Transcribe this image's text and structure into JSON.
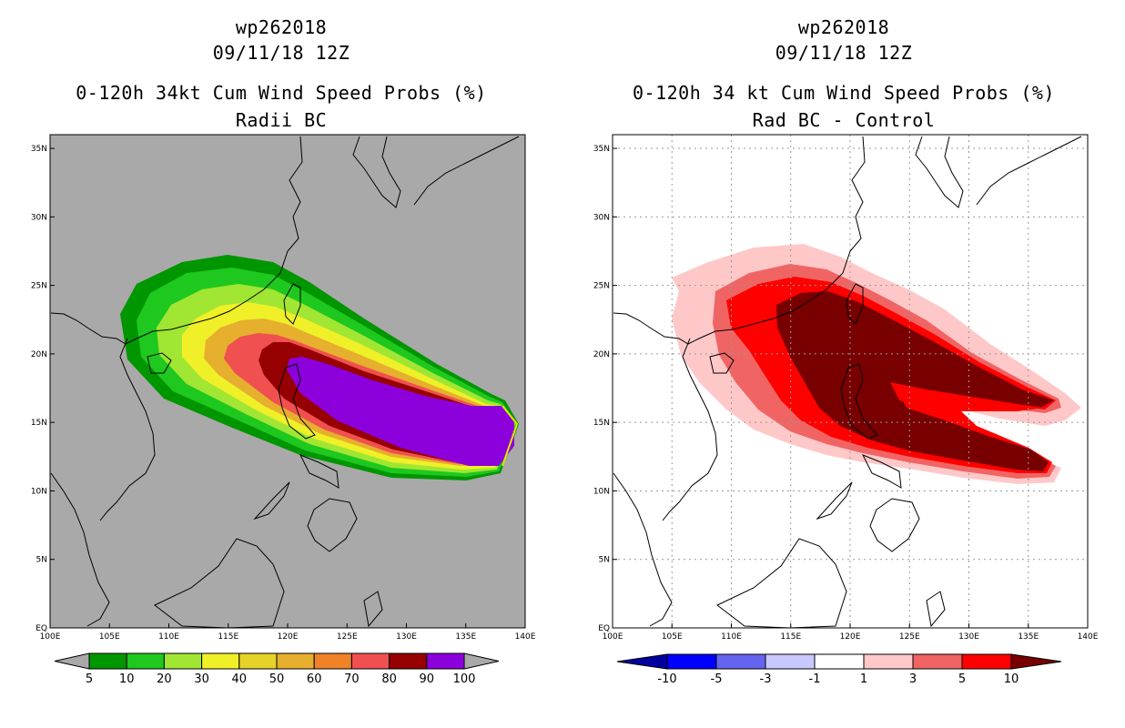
{
  "left": {
    "storm_id": "wp262018",
    "datetime": "09/11/18 12Z",
    "title": "0-120h 34kt Cum Wind Speed Probs (%)",
    "subtitle": "Radii BC",
    "background": "#a9a9a9",
    "colorbar_labels": [
      "5",
      "10",
      "20",
      "30",
      "40",
      "50",
      "60",
      "70",
      "80",
      "90",
      "100"
    ],
    "colorbar_colors": [
      "#009600",
      "#1ec81e",
      "#a0e632",
      "#f0f028",
      "#e6d228",
      "#e6af2d",
      "#f08228",
      "#f05050",
      "#960000",
      "#8c00dc"
    ]
  },
  "right": {
    "storm_id": "wp262018",
    "datetime": "09/11/18 12Z",
    "title": "0-120h 34 kt Cum Wind Speed Probs (%)",
    "subtitle": "Rad BC - Control",
    "background": "#ffffff",
    "colorbar_labels": [
      "-10",
      "-5",
      "-3",
      "-1",
      "1",
      "3",
      "5",
      "10"
    ],
    "colorbar_colors": [
      "#0000a0",
      "#0000ff",
      "#6464f0",
      "#c8c8ff",
      "#ffffff",
      "#ffc8c8",
      "#f06464",
      "#ff0000",
      "#780000"
    ]
  },
  "axes": {
    "lon_labels": [
      "100E",
      "105E",
      "110E",
      "115E",
      "120E",
      "125E",
      "130E",
      "135E",
      "140E"
    ],
    "lat_labels": [
      "EQ",
      "5N",
      "10N",
      "15N",
      "20N",
      "25N",
      "30N",
      "35N"
    ]
  }
}
